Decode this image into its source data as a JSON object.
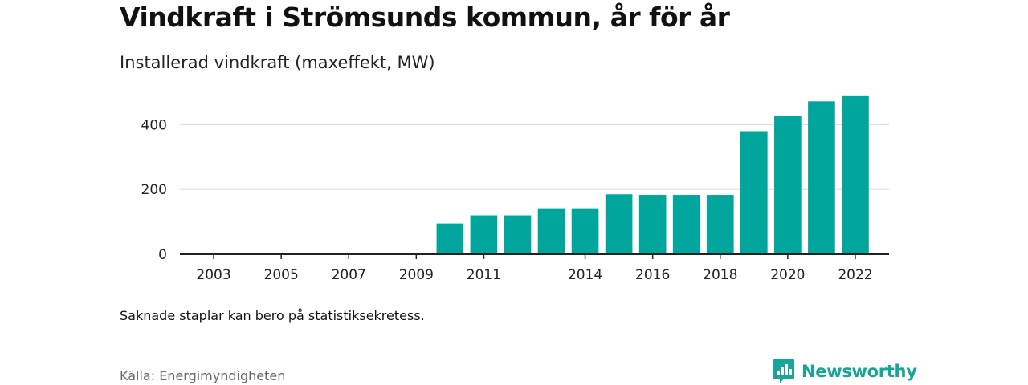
{
  "header": {
    "title": "Vindkraft i Strömsunds kommun, år för år",
    "subtitle": "Installerad vindkraft (maxeffekt, MW)"
  },
  "footer": {
    "note": "Saknade staplar kan bero på statistiksekretess.",
    "source": "Källa: Energimyndigheten",
    "brand": "Newsworthy"
  },
  "colors": {
    "bar": "#00a69c",
    "brand": "#18a497",
    "grid": "#dddddd",
    "axis": "#222222"
  },
  "chart_data": {
    "type": "bar",
    "x": [
      2010,
      2011,
      2012,
      2013,
      2014,
      2015,
      2016,
      2017,
      2018,
      2019,
      2020,
      2021,
      2022
    ],
    "values": [
      95,
      120,
      120,
      142,
      142,
      185,
      183,
      183,
      183,
      380,
      428,
      472,
      488
    ],
    "x_range": [
      2002,
      2023
    ],
    "x_tick_labels": [
      "2003",
      "2005",
      "2007",
      "2009",
      "2011",
      "2014",
      "2016",
      "2018",
      "2020",
      "2022"
    ],
    "y_ticks": [
      0,
      200,
      400
    ],
    "ylim": [
      0,
      500
    ],
    "grid": true,
    "legend": "none"
  }
}
